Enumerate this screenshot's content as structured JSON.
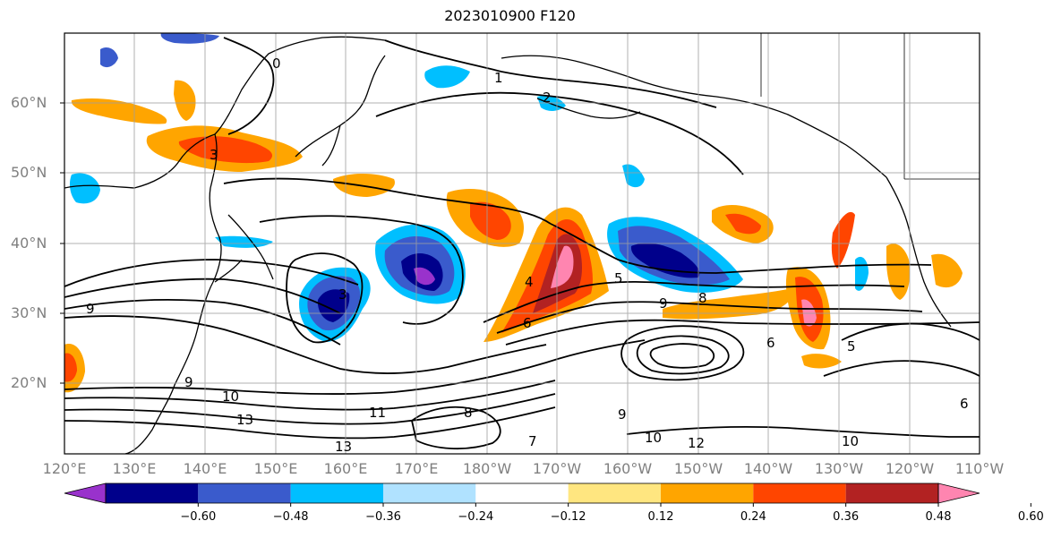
{
  "title": "2023010900 F120",
  "lat_labels": [
    "60°N",
    "50°N",
    "40°N",
    "30°N",
    "20°N"
  ],
  "lon_labels": [
    "120°E",
    "130°E",
    "140°E",
    "150°E",
    "160°E",
    "170°E",
    "180°W",
    "170°W",
    "160°W",
    "150°W",
    "140°W",
    "130°W",
    "120°W",
    "110°W"
  ],
  "colorbar": {
    "ticks": [
      "−0.60",
      "−0.48",
      "−0.36",
      "−0.24",
      "−0.12",
      "0.12",
      "0.24",
      "0.36",
      "0.48",
      "0.60"
    ],
    "colors": [
      "#9932cc",
      "#00008b",
      "#3a5bcc",
      "#00bfff",
      "#b0e2ff",
      "#ffffff",
      "#ffe680",
      "#ffa500",
      "#ff4500",
      "#b22222",
      "#ff85b0"
    ]
  },
  "contour_labels": [
    "0",
    "1",
    "2",
    "3",
    "4",
    "5",
    "6",
    "7",
    "8",
    "9",
    "10",
    "11",
    "12",
    "13"
  ]
}
